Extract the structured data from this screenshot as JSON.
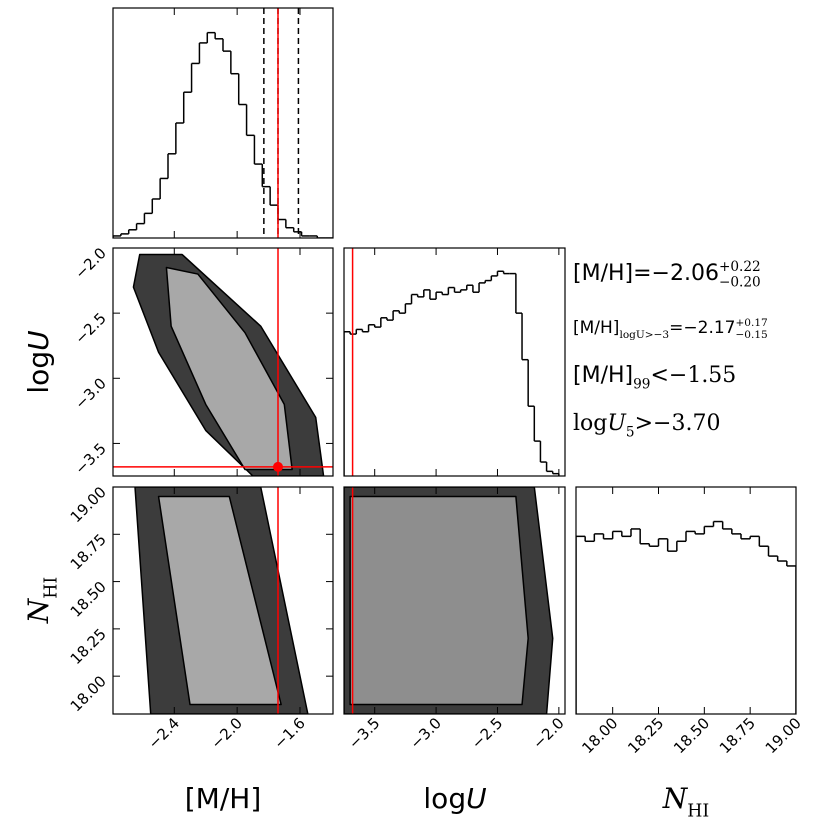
{
  "chart_data": [
    {
      "type": "histogram",
      "color": "#000000",
      "bins": [
        -2.79,
        -2.74,
        -2.69,
        -2.64,
        -2.59,
        -2.54,
        -2.49,
        -2.44,
        -2.39,
        -2.34,
        -2.29,
        -2.24,
        -2.19,
        -2.14,
        -2.09,
        -2.04,
        -1.99,
        -1.94,
        -1.89,
        -1.84,
        -1.79,
        -1.74,
        -1.69,
        -1.64,
        -1.59,
        -1.54,
        -1.49,
        -1.44,
        -1.39
      ],
      "counts": [
        1,
        2,
        4,
        7,
        12,
        19,
        29,
        41,
        56,
        71,
        85,
        95,
        100,
        97,
        91,
        80,
        65,
        50,
        36,
        25,
        16,
        9,
        5,
        3,
        1,
        1,
        0,
        0
      ],
      "xlim": [
        -2.79,
        -1.39
      ],
      "ylim": [
        0,
        112
      ],
      "xticks": [
        {
          "value": -2.4,
          "label": "−2.4"
        },
        {
          "value": -2.0,
          "label": "−2.0"
        },
        {
          "value": -1.6,
          "label": "−1.6"
        }
      ],
      "vlines": [
        {
          "value": -1.83,
          "color": "#000000",
          "dashed": true
        },
        {
          "value": -1.74,
          "color": "#000000",
          "dashed": true
        },
        {
          "value": -1.61,
          "color": "#000000",
          "dashed": true
        },
        {
          "value": -1.74,
          "color": "#ff0000"
        }
      ]
    },
    {
      "type": "contour",
      "xlim": [
        -2.79,
        -1.39
      ],
      "ylim": [
        -3.75,
        -2.0
      ],
      "xticks": [
        {
          "value": -2.4,
          "label": "−2.4"
        },
        {
          "value": -2.0,
          "label": "−2.0"
        },
        {
          "value": -1.6,
          "label": "−1.6"
        }
      ],
      "yticks": [
        {
          "value": -2.0,
          "label": "−2.0"
        },
        {
          "value": -2.5,
          "label": "−2.5"
        },
        {
          "value": -3.0,
          "label": "−3.0"
        },
        {
          "value": -3.5,
          "label": "−3.5"
        }
      ],
      "ytick_labels": true,
      "contours": [
        {
          "fill": "#3c3c3c",
          "x": [
            -2.62,
            -2.35,
            -1.85,
            -1.5,
            -1.45,
            -1.9,
            -2.2,
            -2.5,
            -2.66
          ],
          "y": [
            -2.05,
            -2.05,
            -2.6,
            -3.3,
            -3.75,
            -3.75,
            -3.4,
            -2.8,
            -2.3
          ]
        },
        {
          "fill": "#a8a8a8",
          "x": [
            -2.45,
            -2.25,
            -1.95,
            -1.7,
            -1.65,
            -1.95,
            -2.2,
            -2.42
          ],
          "y": [
            -2.15,
            -2.2,
            -2.65,
            -3.2,
            -3.7,
            -3.7,
            -3.2,
            -2.6
          ]
        }
      ],
      "vlines": [
        {
          "value": -1.74,
          "color": "#ff0000"
        }
      ],
      "hlines": [
        {
          "value": -3.68,
          "color": "#ff0000"
        }
      ],
      "points": [
        {
          "x": -1.74,
          "y": -3.68,
          "color": "#ff0000"
        }
      ]
    },
    {
      "type": "histogram",
      "color": "#000000",
      "bins": [
        -3.75,
        -3.7,
        -3.65,
        -3.6,
        -3.55,
        -3.5,
        -3.45,
        -3.4,
        -3.35,
        -3.3,
        -3.25,
        -3.2,
        -3.15,
        -3.1,
        -3.05,
        -3.0,
        -2.95,
        -2.9,
        -2.85,
        -2.8,
        -2.75,
        -2.7,
        -2.65,
        -2.6,
        -2.55,
        -2.5,
        -2.45,
        -2.4,
        -2.35,
        -2.3,
        -2.25,
        -2.2,
        -2.15,
        -2.1,
        -2.05,
        -2.0
      ],
      "counts": [
        62,
        61,
        63,
        62,
        65,
        64,
        68,
        67,
        71,
        70,
        74,
        78,
        77,
        80,
        76,
        79,
        78,
        81,
        79,
        80,
        82,
        79,
        83,
        84,
        86,
        88,
        87,
        87,
        70,
        50,
        30,
        15,
        6,
        2,
        1
      ],
      "xlim": [
        -3.75,
        -1.95
      ],
      "ylim": [
        0,
        98
      ],
      "xticks": [
        {
          "value": -3.5,
          "label": "−3.5"
        },
        {
          "value": -3.0,
          "label": "−3.0"
        },
        {
          "value": -2.5,
          "label": "−2.5"
        },
        {
          "value": -2.0,
          "label": "−2.0"
        }
      ],
      "vlines": [
        {
          "value": -3.68,
          "color": "#ff0000"
        }
      ]
    },
    {
      "type": "contour",
      "xlim": [
        -2.79,
        -1.39
      ],
      "ylim": [
        17.8,
        19.0
      ],
      "xticks": [
        {
          "value": -2.4,
          "label": "−2.4"
        },
        {
          "value": -2.0,
          "label": "−2.0"
        },
        {
          "value": -1.6,
          "label": "−1.6"
        }
      ],
      "xtick_labels": true,
      "yticks": [
        {
          "value": 18.0,
          "label": "18.00"
        },
        {
          "value": 18.25,
          "label": "18.25"
        },
        {
          "value": 18.5,
          "label": "18.50"
        },
        {
          "value": 18.75,
          "label": "18.75"
        },
        {
          "value": 19.0,
          "label": "19.00"
        }
      ],
      "ytick_labels": true,
      "contours": [
        {
          "fill": "#3c3c3c",
          "x": [
            -2.65,
            -1.85,
            -1.55,
            -2.55
          ],
          "y": [
            19.0,
            19.0,
            17.8,
            17.8
          ]
        },
        {
          "fill": "#a8a8a8",
          "x": [
            -2.5,
            -2.05,
            -1.72,
            -2.3
          ],
          "y": [
            18.95,
            18.95,
            17.85,
            17.85
          ]
        }
      ],
      "vlines": [
        {
          "value": -1.74,
          "color": "#ff0000"
        }
      ]
    },
    {
      "type": "contour",
      "xlim": [
        -3.75,
        -1.95
      ],
      "ylim": [
        17.8,
        19.0
      ],
      "xticks": [
        {
          "value": -3.5,
          "label": "−3.5"
        },
        {
          "value": -3.0,
          "label": "−3.0"
        },
        {
          "value": -2.5,
          "label": "−2.5"
        },
        {
          "value": -2.0,
          "label": "−2.0"
        }
      ],
      "xtick_labels": true,
      "contours": [
        {
          "fill": "#3c3c3c",
          "x": [
            -3.75,
            -2.2,
            -2.05,
            -2.1,
            -3.75
          ],
          "y": [
            19.0,
            19.0,
            18.2,
            17.8,
            17.8
          ]
        },
        {
          "fill": "#8e8e8e",
          "x": [
            -3.7,
            -2.35,
            -2.25,
            -2.3,
            -3.7
          ],
          "y": [
            18.95,
            18.95,
            18.2,
            17.85,
            17.85
          ]
        }
      ],
      "vlines": [
        {
          "value": -3.68,
          "color": "#ff0000"
        }
      ]
    },
    {
      "type": "histogram",
      "color": "#000000",
      "bins": [
        17.8,
        17.85,
        17.9,
        17.95,
        18.0,
        18.05,
        18.1,
        18.15,
        18.2,
        18.25,
        18.3,
        18.35,
        18.4,
        18.45,
        18.5,
        18.55,
        18.6,
        18.65,
        18.7,
        18.75,
        18.8,
        18.85,
        18.9,
        18.95,
        19.0
      ],
      "counts": [
        72,
        70,
        73,
        71,
        74,
        72,
        75,
        69,
        68,
        71,
        66,
        70,
        74,
        73,
        76,
        78,
        75,
        73,
        71,
        72,
        68,
        64,
        62,
        60
      ],
      "xlim": [
        17.8,
        19.0
      ],
      "ylim": [
        0,
        92
      ],
      "xticks": [
        {
          "value": 18.0,
          "label": "18.00"
        },
        {
          "value": 18.25,
          "label": "18.25"
        },
        {
          "value": 18.5,
          "label": "18.50"
        },
        {
          "value": 18.75,
          "label": "18.75"
        },
        {
          "value": 19.0,
          "label": "19.00"
        }
      ],
      "xtick_labels": true
    }
  ],
  "axis_labels": {
    "x": [
      [
        {
          "text": "[M/H]"
        }
      ],
      [
        {
          "text": "log"
        },
        {
          "text": "U",
          "italic": true
        }
      ],
      [
        {
          "text": "N",
          "italic": true,
          "serif": true
        },
        {
          "text": "HI",
          "pos": "sub",
          "serif": true
        }
      ]
    ],
    "y": [
      [
        {
          "text": "log"
        },
        {
          "text": "U",
          "italic": true
        }
      ],
      [
        {
          "text": "N",
          "italic": true,
          "serif": true
        },
        {
          "text": "HI",
          "pos": "sub",
          "serif": true
        }
      ]
    ]
  },
  "annotations": [
    [
      {
        "text": "[M/H]=−2.06"
      },
      {
        "text": "+0.22",
        "pos": "sup",
        "serif": true
      },
      {
        "text": "−0.20",
        "pos": "sub",
        "stack": true,
        "serif": true
      }
    ],
    [
      {
        "text": "[M/H]"
      },
      {
        "text": "logU>−3",
        "pos": "sub",
        "serif": true
      },
      {
        "text": "=−2.17"
      },
      {
        "text": "+0.17",
        "pos": "sup",
        "serif": true
      },
      {
        "text": "−0.15",
        "pos": "sub",
        "stack": true,
        "serif": true
      }
    ],
    [
      {
        "text": "[M/H]"
      },
      {
        "text": "99",
        "pos": "sub",
        "serif": true
      },
      {
        "text": "<−1.55",
        "serif": true
      }
    ],
    [
      {
        "text": "log",
        "serif": true
      },
      {
        "text": "U",
        "italic": true,
        "serif": true
      },
      {
        "text": "5",
        "pos": "sub",
        "serif": true
      },
      {
        "text": ">−3.70",
        "serif": true
      }
    ]
  ]
}
